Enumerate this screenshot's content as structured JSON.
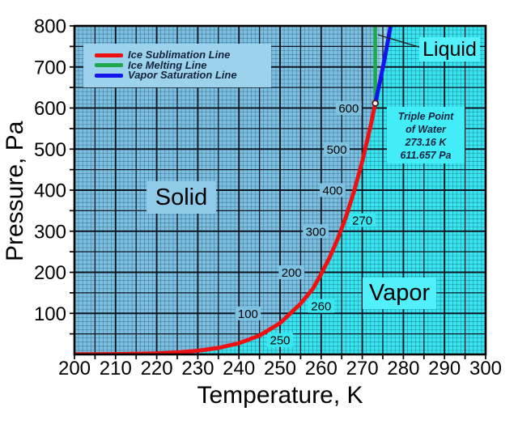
{
  "colors": {
    "legend_bg": "#9CD2EC",
    "solid_box": "#8FCBE9",
    "vapor_box": "#52F0FA",
    "liquid_box": "#52F0FA",
    "annotation_box": "#43EDF7",
    "legend_text": "#14233D"
  },
  "legend": {
    "items": [
      {
        "label": "Ice Sublimation Line",
        "color": "#EE1111"
      },
      {
        "label": "Ice Melting Line",
        "color": "#1FA84E"
      },
      {
        "label": "Vapor Saturation Line",
        "color": "#1414EE"
      }
    ]
  },
  "regions": {
    "solid": {
      "label": "Solid"
    },
    "vapor": {
      "label": "Vapor"
    },
    "liquid": {
      "label": "Liquid"
    }
  },
  "annotations": {
    "triple_point": {
      "lines": [
        "Triple Point",
        "of Water",
        "273.16 K",
        "611.657 Pa"
      ]
    }
  },
  "chart_data": {
    "type": "line",
    "title": "",
    "xlabel": "Temperature, K",
    "ylabel": "Pressure, Pa",
    "xlim": [
      200,
      300
    ],
    "ylim": [
      0,
      800
    ],
    "x_ticks": [
      200,
      210,
      220,
      230,
      240,
      250,
      260,
      270,
      280,
      290,
      300
    ],
    "y_ticks": [
      100,
      200,
      300,
      400,
      500,
      600,
      700,
      800
    ],
    "grid": {
      "minor_dx": 1,
      "minor_dy": 10,
      "major_dx": 5,
      "major_dy": 50
    },
    "region_colors": {
      "solid": "#7DC0E0",
      "vapor": "#3AE7F0",
      "liquid": "#9AD3EA"
    },
    "series": [
      {
        "name": "Ice Sublimation Line",
        "color": "#EE1111",
        "width": 5,
        "points": [
          [
            200,
            0.16
          ],
          [
            205,
            0.33
          ],
          [
            210,
            0.7
          ],
          [
            215,
            1.39
          ],
          [
            220,
            2.65
          ],
          [
            225,
            4.94
          ],
          [
            230,
            8.95
          ],
          [
            235,
            15.81
          ],
          [
            240,
            27.27
          ],
          [
            245,
            46.0
          ],
          [
            250,
            76.0
          ],
          [
            255,
            123.5
          ],
          [
            258,
            160.0
          ],
          [
            260,
            195.8
          ],
          [
            262,
            234.9
          ],
          [
            264,
            280.4
          ],
          [
            266,
            334.0
          ],
          [
            268,
            396.9
          ],
          [
            270,
            470.1
          ],
          [
            272,
            555.7
          ],
          [
            273.16,
            611.657
          ]
        ]
      },
      {
        "name": "Ice Melting Line",
        "color": "#1FA84E",
        "width": 4.5,
        "points": [
          [
            273.16,
            611.657
          ],
          [
            273.14,
            800
          ]
        ]
      },
      {
        "name": "Vapor Saturation Line",
        "color": "#1414EE",
        "width": 5,
        "points": [
          [
            273.16,
            611.657
          ],
          [
            274.15,
            657.1
          ],
          [
            275.15,
            705.9
          ],
          [
            276.15,
            758.0
          ],
          [
            277.15,
            813.5
          ]
        ]
      }
    ],
    "triple_point": {
      "T": 273.16,
      "P": 611.657
    },
    "inline_labels": {
      "pressure": [
        {
          "text": "100",
          "T": 242.2,
          "P": 100
        },
        {
          "text": "200",
          "T": 252.8,
          "P": 200
        },
        {
          "text": "300",
          "T": 258.7,
          "P": 300
        },
        {
          "text": "400",
          "T": 262.8,
          "P": 400
        },
        {
          "text": "500",
          "T": 263.8,
          "P": 500
        },
        {
          "text": "600",
          "T": 266.7,
          "P": 600
        }
      ],
      "temperature": [
        {
          "text": "250",
          "T": 250,
          "P": 35
        },
        {
          "text": "260",
          "T": 260,
          "P": 118
        },
        {
          "text": "270",
          "T": 270,
          "P": 327
        }
      ]
    }
  }
}
